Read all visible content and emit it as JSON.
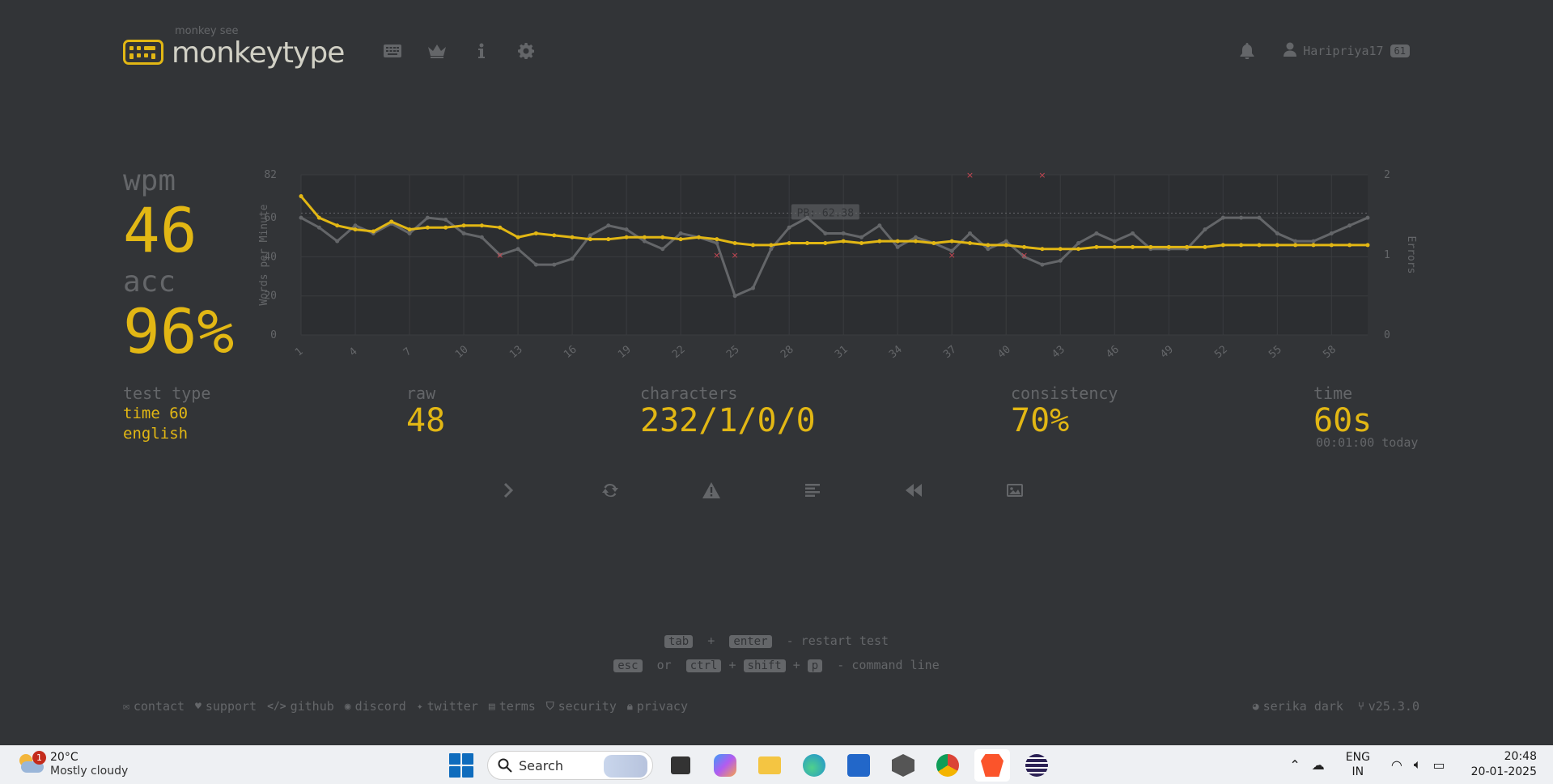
{
  "header": {
    "logo_sub": "monkey see",
    "logo_text": "monkeytype",
    "nav_icons": [
      "keyboard-icon",
      "crown-icon",
      "info-icon",
      "gear-icon"
    ],
    "username": "Haripriya17",
    "level": "61"
  },
  "result": {
    "wpm_label": "wpm",
    "wpm": "46",
    "acc_label": "acc",
    "acc": "96%",
    "test_type_label": "test type",
    "test_type_mode": "time 60",
    "test_type_lang": "english",
    "raw_label": "raw",
    "raw": "48",
    "characters_label": "characters",
    "characters": "232/1/0/0",
    "consistency_label": "consistency",
    "consistency": "70%",
    "time_label": "time",
    "time": "60s",
    "time_today": "00:01:00 today"
  },
  "chart_data": {
    "type": "line",
    "ylabel": "Words per Minute",
    "y2label": "Errors",
    "ylim": [
      0,
      82
    ],
    "y2lim": [
      0,
      2
    ],
    "yticks": [
      "0",
      "20",
      "40",
      "60",
      "82"
    ],
    "y2ticks": [
      "0",
      "1",
      "2"
    ],
    "xticks": [
      "1",
      "4",
      "7",
      "10",
      "13",
      "16",
      "19",
      "22",
      "25",
      "28",
      "31",
      "34",
      "37",
      "40",
      "43",
      "46",
      "49",
      "52",
      "55",
      "58"
    ],
    "x": [
      1,
      2,
      3,
      4,
      5,
      6,
      7,
      8,
      9,
      10,
      11,
      12,
      13,
      14,
      15,
      16,
      17,
      18,
      19,
      20,
      21,
      22,
      23,
      24,
      25,
      26,
      27,
      28,
      29,
      30,
      31,
      32,
      33,
      34,
      35,
      36,
      37,
      38,
      39,
      40,
      41,
      42,
      43,
      44,
      45,
      46,
      47,
      48,
      49,
      50,
      51,
      52,
      53,
      54,
      55,
      56,
      57,
      58,
      59,
      60
    ],
    "pb_label": "PB: 62.38",
    "pb": 62.38,
    "series": [
      {
        "name": "wpm",
        "color": "#e2b714",
        "values": [
          71,
          60,
          56,
          54,
          53,
          58,
          54,
          55,
          55,
          56,
          56,
          55,
          50,
          52,
          51,
          50,
          49,
          49,
          50,
          50,
          50,
          49,
          50,
          49,
          47,
          46,
          46,
          47,
          47,
          47,
          48,
          47,
          48,
          48,
          48,
          47,
          48,
          47,
          46,
          46,
          45,
          44,
          44,
          44,
          45,
          45,
          45,
          45,
          45,
          45,
          45,
          46,
          46,
          46,
          46,
          46,
          46,
          46,
          46,
          46
        ]
      },
      {
        "name": "raw",
        "color": "#646669",
        "values": [
          60,
          55,
          48,
          56,
          52,
          57,
          52,
          60,
          59,
          52,
          50,
          41,
          44,
          36,
          36,
          39,
          51,
          56,
          54,
          48,
          44,
          52,
          50,
          47,
          20,
          24,
          44,
          55,
          60,
          52,
          52,
          50,
          56,
          45,
          50,
          47,
          43,
          52,
          44,
          48,
          40,
          36,
          38,
          47,
          52,
          48,
          52,
          44,
          44,
          44,
          54,
          60,
          60,
          60,
          52,
          48,
          48,
          52,
          56,
          60
        ]
      }
    ],
    "errors": [
      {
        "x": 12,
        "count": 1
      },
      {
        "x": 24,
        "count": 1
      },
      {
        "x": 25,
        "count": 1
      },
      {
        "x": 37,
        "count": 1
      },
      {
        "x": 38,
        "count": 2
      },
      {
        "x": 41,
        "count": 1
      },
      {
        "x": 42,
        "count": 2
      }
    ]
  },
  "hints": {
    "line1_keys": [
      "tab",
      "enter"
    ],
    "line1_plus": "+",
    "line1_text": "- restart test",
    "line2_keys": [
      "esc",
      "ctrl",
      "shift",
      "p"
    ],
    "line2_or": "or",
    "line2_plus": "+",
    "line2_text": "- command line"
  },
  "footer": {
    "links": [
      "contact",
      "support",
      "github",
      "discord",
      "twitter",
      "terms",
      "security",
      "privacy"
    ],
    "theme": "serika dark",
    "version": "v25.3.0"
  },
  "taskbar": {
    "weather_temp": "20°C",
    "weather_desc": "Mostly cloudy",
    "weather_badge": "1",
    "search_label": "Search",
    "lang_line1": "ENG",
    "lang_line2": "IN",
    "time": "20:48",
    "date": "20-01-2025"
  },
  "colors": {
    "bg": "#323437",
    "main": "#e2b714",
    "sub": "#646669",
    "text": "#d1d0c5",
    "error": "#ca4754"
  }
}
